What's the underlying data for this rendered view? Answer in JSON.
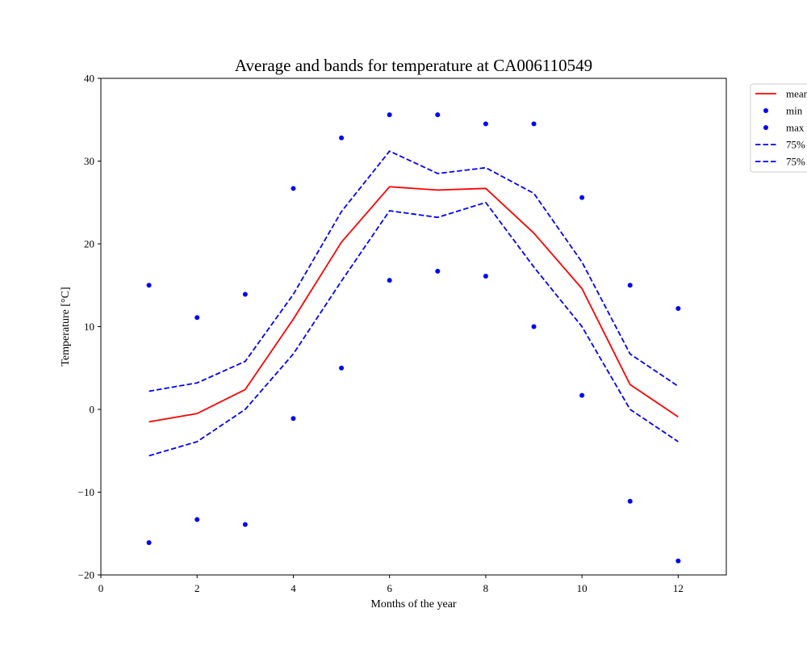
{
  "chart_data": {
    "type": "line",
    "title": "Average and bands for temperature at CA006110549",
    "xlabel": "Months of the year",
    "ylabel": "Temperature [°C]",
    "xlim": [
      0,
      13
    ],
    "ylim": [
      -20,
      40
    ],
    "x_ticks": [
      0,
      2,
      4,
      6,
      8,
      10,
      12
    ],
    "y_ticks": [
      -20,
      -10,
      0,
      10,
      20,
      30,
      40
    ],
    "y_tick_labels": [
      "−20",
      "−10",
      "0",
      "10",
      "20",
      "30",
      "40"
    ],
    "grid": false,
    "legend_position": "upper-right-outside",
    "x": [
      1,
      2,
      3,
      4,
      5,
      6,
      7,
      8,
      9,
      10,
      11,
      12
    ],
    "series": [
      {
        "name": "mean",
        "kind": "line",
        "style": "solid",
        "color": "#ff0000",
        "values": [
          -1.5,
          -0.5,
          2.4,
          10.9,
          20.2,
          26.9,
          26.5,
          26.7,
          21.3,
          14.6,
          3.0,
          -0.9
        ]
      },
      {
        "name": "min",
        "kind": "scatter",
        "color": "#0000ff",
        "values": [
          -16.1,
          -13.3,
          -13.9,
          -1.1,
          5.0,
          15.6,
          16.7,
          16.1,
          10.0,
          1.7,
          -11.1,
          -18.3
        ]
      },
      {
        "name": "max",
        "kind": "scatter",
        "color": "#0000ff",
        "values": [
          15.0,
          11.1,
          13.9,
          26.7,
          32.8,
          35.6,
          35.6,
          34.5,
          34.5,
          25.6,
          15.0,
          12.2
        ]
      },
      {
        "name": "75%",
        "kind": "line",
        "style": "dashed",
        "color": "#0000ff",
        "values": [
          2.2,
          3.2,
          5.8,
          13.9,
          23.9,
          31.2,
          28.5,
          29.2,
          26.1,
          17.8,
          6.7,
          2.8
        ]
      },
      {
        "name": "75%",
        "kind": "line",
        "style": "dashed",
        "color": "#0000ff",
        "values": [
          -5.6,
          -3.9,
          0.0,
          6.7,
          15.5,
          24.0,
          23.2,
          25.0,
          17.2,
          10.0,
          0.0,
          -3.9
        ]
      }
    ]
  }
}
